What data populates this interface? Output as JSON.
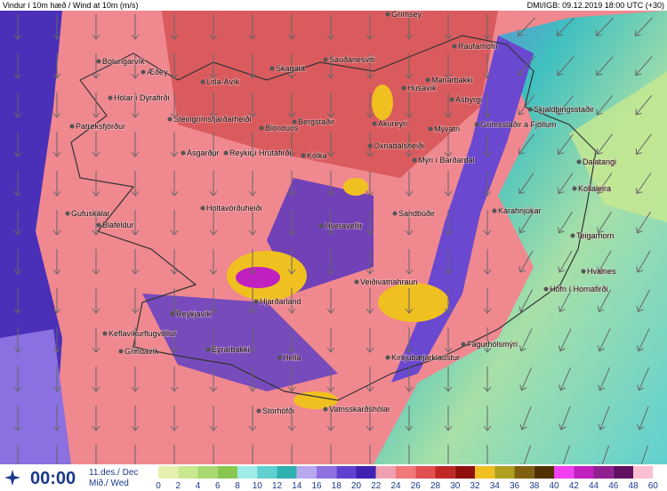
{
  "header": {
    "title": "Vindur í 10m hæð / Wind at 10m (m/s)",
    "source": "DMI/IGB: 09.12.2019 18:00 UTC (+30)"
  },
  "places": [
    "Grímsey",
    "Raufarhöfn",
    "Bolungarvík",
    "Æðey",
    "Mánárbakki",
    "Litla-Ávík",
    "Skagatá",
    "Sauðanesviti",
    "Húsavík",
    "Ásbyrgi",
    "Hólar í Dýrafirði",
    "Patreksfjörður",
    "Steingrímsfjarðarheiði",
    "Blönduós",
    "Bergstaðir",
    "Akureyri",
    "Mývatn",
    "Grímsstaðir á Fjöllum",
    "Skjaldþingsstaðir",
    "Oxnadalsheiði",
    "Mýri í Bárðardal",
    "Dalatangi",
    "Kollaleira",
    "Ásgarður",
    "Reykir í Hrútafirði",
    "Kolka",
    "Gufuskálar",
    "Blafeldur",
    "Holtavörðuheiði",
    "Sandbúðir",
    "Kárahnjúkar",
    "Teigarhorn",
    "Hveravellir",
    "Veiðivatnahraun",
    "Hvalnes",
    "Höfn í Hornafirði",
    "Hjarðarland",
    "Reykjavík",
    "Keflavíkurflugvöllur",
    "Grindavík",
    "Eyrarbakki",
    "Hella",
    "Kirkjubæjarklaustur",
    "Fagurhólsmýri",
    "Stórhöfði",
    "Vatnsskarðshólar"
  ],
  "time": {
    "clock": "00:00",
    "date": "11.des./ Dec",
    "day": "Mið./ Wed"
  },
  "legend": {
    "ticks": [
      0,
      2,
      4,
      6,
      8,
      10,
      12,
      14,
      16,
      18,
      20,
      22,
      24,
      26,
      28,
      30,
      32,
      34,
      36,
      38,
      40,
      42,
      44,
      46,
      48,
      60
    ],
    "colors": [
      "#e8f0b0",
      "#c8e890",
      "#a8d870",
      "#88c850",
      "#a0ece8",
      "#60d0d0",
      "#30b0b0",
      "#b8a8f0",
      "#9070e0",
      "#6040d0",
      "#4020b0",
      "#f0a0b0",
      "#f07878",
      "#e05050",
      "#c02828",
      "#901010",
      "#f0c020",
      "#b0a020",
      "#806010",
      "#503000",
      "#f040f0",
      "#c020c0",
      "#902090",
      "#601060",
      "#f8c0d0"
    ]
  }
}
